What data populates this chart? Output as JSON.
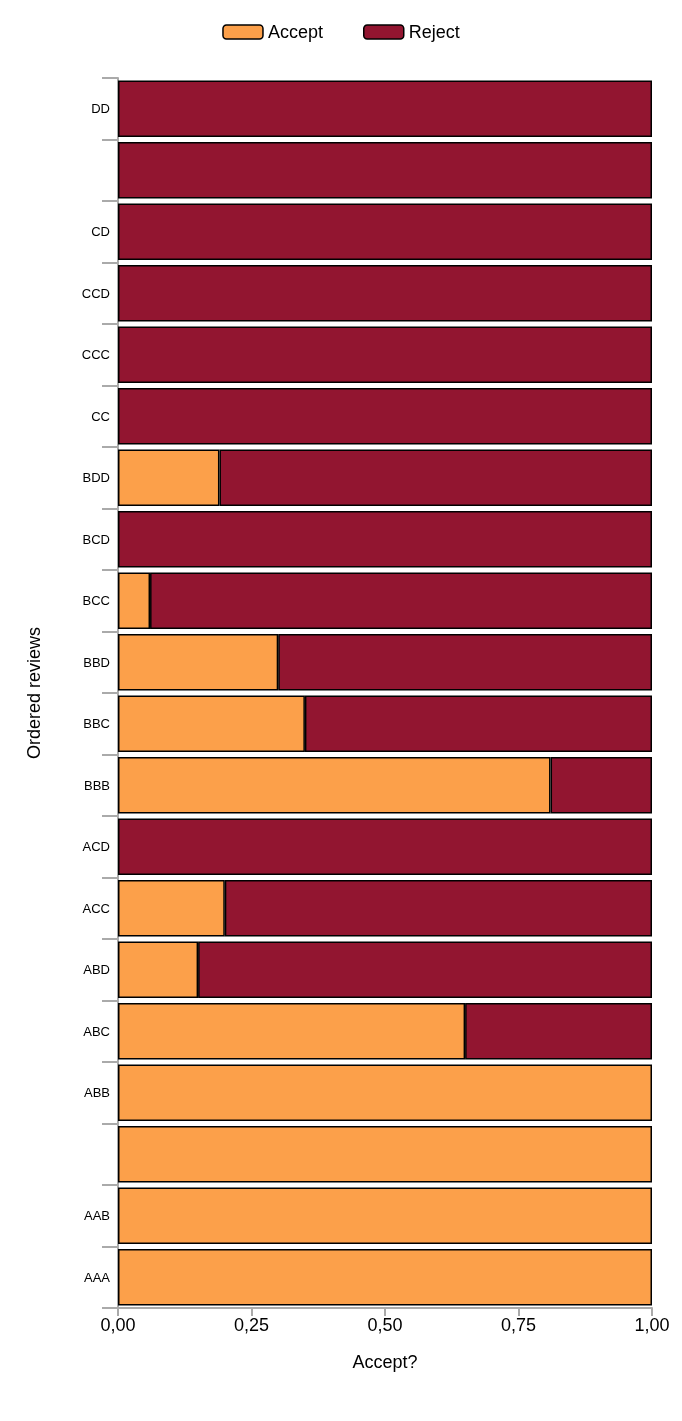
{
  "chart_data": {
    "type": "bar",
    "orientation": "horizontal",
    "stacked": true,
    "xlabel": "Accept?",
    "ylabel": "Ordered reviews",
    "categories": [
      "DD",
      null,
      "CD",
      "CCD",
      "CCC",
      "CC",
      "BDD",
      "BCD",
      "BCC",
      "BBD",
      "BBC",
      "BBB",
      "ACD",
      "ACC",
      "ABD",
      "ABC",
      "ABB",
      null,
      "AAB",
      "AAA"
    ],
    "series": [
      {
        "name": "Accept",
        "color": "#fca04a",
        "values": [
          0,
          0,
          0,
          0,
          0,
          0,
          0.19,
          0,
          0.06,
          0.3,
          0.35,
          0.81,
          0,
          0.2,
          0.15,
          0.65,
          1,
          1,
          1,
          1
        ]
      },
      {
        "name": "Reject",
        "color": "#921530",
        "values": [
          1,
          1,
          1,
          1,
          1,
          1,
          0.81,
          1,
          0.94,
          0.7,
          0.65,
          0.19,
          1,
          0.8,
          0.85,
          0.35,
          0,
          0,
          0,
          0
        ]
      }
    ],
    "xlim": [
      0,
      1
    ],
    "xticks": [
      {
        "value": 0,
        "label": "0,00"
      },
      {
        "value": 0.25,
        "label": "0,25"
      },
      {
        "value": 0.5,
        "label": "0,50"
      },
      {
        "value": 0.75,
        "label": "0,75"
      },
      {
        "value": 1,
        "label": "1,00"
      }
    ],
    "legend": "top",
    "grid": false
  }
}
